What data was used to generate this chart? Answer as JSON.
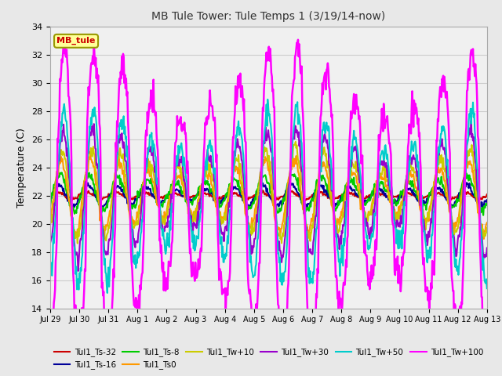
{
  "title": "MB Tule Tower: Tule Temps 1 (3/19/14-now)",
  "ylabel": "Temperature (C)",
  "ylim": [
    14,
    34
  ],
  "yticks": [
    14,
    16,
    18,
    20,
    22,
    24,
    26,
    28,
    30,
    32,
    34
  ],
  "background_color": "#e8e8e8",
  "plot_bg_color": "#f0f0f0",
  "annotation_box": {
    "text": "MB_tule",
    "facecolor": "#ffff99",
    "edgecolor": "#999900",
    "textcolor": "#cc0000"
  },
  "tick_labels": [
    "Jul 29",
    "Jul 30",
    "Jul 31",
    "Aug 1",
    "Aug 2",
    "Aug 3",
    "Aug 4",
    "Aug 5",
    "Aug 6",
    "Aug 7",
    "Aug 8",
    "Aug 9",
    "Aug 10",
    "Aug 11",
    "Aug 12",
    "Aug 13"
  ],
  "series": [
    {
      "label": "Tul1_Ts-32",
      "color": "#cc0000",
      "lw": 1.5,
      "base": 22.0,
      "amp": 0.2,
      "phase": 0.0,
      "noise": 0.05
    },
    {
      "label": "Tul1_Ts-16",
      "color": "#000099",
      "lw": 1.5,
      "base": 22.0,
      "amp": 0.6,
      "phase": 0.3,
      "noise": 0.1
    },
    {
      "label": "Tul1_Ts-8",
      "color": "#00cc00",
      "lw": 1.5,
      "base": 22.2,
      "amp": 1.0,
      "phase": 0.5,
      "noise": 0.15
    },
    {
      "label": "Tul1_Ts0",
      "color": "#ff9900",
      "lw": 1.5,
      "base": 22.0,
      "amp": 2.0,
      "phase": 0.8,
      "noise": 0.2
    },
    {
      "label": "Tul1_Tw+10",
      "color": "#cccc00",
      "lw": 1.5,
      "base": 22.2,
      "amp": 2.5,
      "phase": 1.0,
      "noise": 0.25
    },
    {
      "label": "Tul1_Tw+30",
      "color": "#9900cc",
      "lw": 1.5,
      "base": 22.2,
      "amp": 3.5,
      "phase": 1.2,
      "noise": 0.3
    },
    {
      "label": "Tul1_Tw+50",
      "color": "#00cccc",
      "lw": 1.5,
      "base": 22.0,
      "amp": 4.8,
      "phase": 1.4,
      "noise": 0.4
    },
    {
      "label": "Tul1_Tw+100",
      "color": "#ff00ff",
      "lw": 1.8,
      "base": 22.0,
      "amp": 8.0,
      "phase": 1.5,
      "noise": 0.6
    }
  ]
}
